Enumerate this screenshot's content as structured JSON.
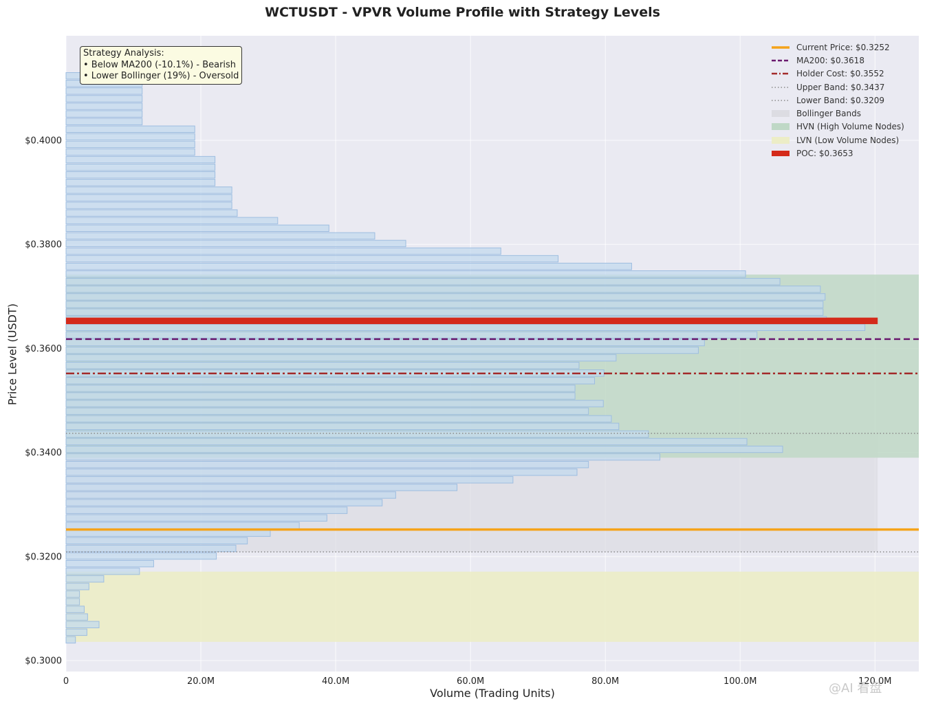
{
  "chart_data": {
    "type": "bar",
    "orientation": "horizontal",
    "title": "WCTUSDT - VPVR Volume Profile with Strategy Levels",
    "xlabel": "Volume (Trading Units)",
    "ylabel": "Price Level (USDT)",
    "xlim": [
      0,
      126.5
    ],
    "ylim": [
      0.2979,
      0.4201
    ],
    "x_ticks": [
      "0",
      "20.0M",
      "40.0M",
      "60.0M",
      "80.0M",
      "100.0M",
      "120.0M"
    ],
    "x_tick_values": [
      0,
      20,
      40,
      60,
      80,
      100,
      120
    ],
    "y_ticks": [
      "$0.3000",
      "$0.3200",
      "$0.3400",
      "$0.3600",
      "$0.3800",
      "$0.4000"
    ],
    "y_tick_values": [
      0.3,
      0.32,
      0.34,
      0.36,
      0.38,
      0.4
    ],
    "grid": true,
    "legend_position": "top-right",
    "bins": {
      "price_start": 0.30399,
      "price_step": 0.001465,
      "bar_height": 0.00125,
      "volumes_millions": [
        1.4,
        3.1,
        4.9,
        3.2,
        2.7,
        2.0,
        2.0,
        3.4,
        5.6,
        10.9,
        13.0,
        22.3,
        25.2,
        26.9,
        30.3,
        34.6,
        38.7,
        41.7,
        46.9,
        48.9,
        58.0,
        66.3,
        75.8,
        77.5,
        88.1,
        106.3,
        101.0,
        86.4,
        82.0,
        80.9,
        77.5,
        79.7,
        75.5,
        75.5,
        78.4,
        79.8,
        76.1,
        81.6,
        93.8,
        94.7,
        102.5,
        118.5,
        112.8,
        112.3,
        112.3,
        112.6,
        111.9,
        105.9,
        100.8,
        83.9,
        73.0,
        64.5,
        50.4,
        45.8,
        39.0,
        31.4,
        25.4,
        24.6,
        24.6,
        24.6,
        22.1,
        22.1,
        22.1,
        22.1,
        19.1,
        19.1,
        19.1,
        19.1,
        11.3,
        11.3,
        11.3,
        11.3,
        11.3,
        11.3,
        11.3
      ]
    },
    "levels": {
      "current_price": 0.3252,
      "ma200": 0.3618,
      "holder_cost": 0.3552,
      "upper_band": 0.3437,
      "lower_band": 0.3209,
      "poc": 0.3653,
      "poc_volume_millions": 120.4
    },
    "hvn_zone": [
      0.339,
      0.3742
    ],
    "lvn_zone": [
      0.3036,
      0.3171
    ],
    "legend": [
      {
        "label": "Current Price: $0.3252",
        "style": "solid-thick",
        "color": "#f5a31a"
      },
      {
        "label": "MA200: $0.3618",
        "style": "dashed",
        "color": "#6a1a6e"
      },
      {
        "label": "Holder Cost: $0.3552",
        "style": "dashdot",
        "color": "#a32a2a"
      },
      {
        "label": "Upper Band: $0.3437",
        "style": "dotted",
        "color": "#8a8a8a"
      },
      {
        "label": "Lower Band: $0.3209",
        "style": "dotted",
        "color": "#8a8a8a"
      },
      {
        "label": "Bollinger Bands",
        "style": "patch",
        "color": "#dcdce2"
      },
      {
        "label": "HVN (High Volume Nodes)",
        "style": "patch",
        "color": "#bfd8c6"
      },
      {
        "label": "LVN (Low Volume Nodes)",
        "style": "patch",
        "color": "#ecedc6"
      },
      {
        "label": "POC: $0.3653",
        "style": "bar",
        "color": "#d42a1a"
      }
    ],
    "annotation": {
      "title": "Strategy Analysis:",
      "lines": [
        "• Below MA200 (-10.1%) - Bearish",
        "• Lower Bollinger (19%) - Oversold"
      ]
    },
    "colors": {
      "plot_bg": "#eaeaf2",
      "bar_fill": "#c3daee",
      "bar_edge": "#9dbde0",
      "grid": "#ffffff"
    }
  },
  "watermark": "@AI 看盘"
}
